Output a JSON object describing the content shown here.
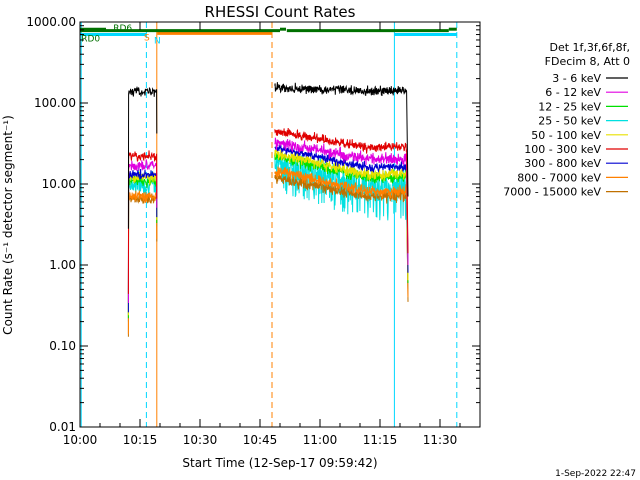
{
  "chart_data": {
    "type": "line",
    "title": "RHESSI Count Rates",
    "xlabel": "Start Time (12-Sep-17 09:59:42)",
    "ylabel": "Count Rate (s⁻¹ detector segment⁻¹)",
    "yscale": "log",
    "ylim": [
      0.01,
      1000
    ],
    "xlim_minutes": [
      0,
      100
    ],
    "xticks": [
      {
        "t": 0,
        "label": "10:00"
      },
      {
        "t": 15,
        "label": "10:15"
      },
      {
        "t": 30,
        "label": "10:30"
      },
      {
        "t": 45,
        "label": "10:45"
      },
      {
        "t": 60,
        "label": "11:00"
      },
      {
        "t": 75,
        "label": "11:15"
      },
      {
        "t": 90,
        "label": "11:30"
      }
    ],
    "yticks": [
      {
        "v": 1000,
        "label": "1000.00"
      },
      {
        "v": 100,
        "label": "100.00"
      },
      {
        "v": 10,
        "label": "10.00"
      },
      {
        "v": 1,
        "label": "1.00"
      },
      {
        "v": 0.1,
        "label": "0.10"
      },
      {
        "v": 0.01,
        "label": "0.01"
      }
    ],
    "legend_header": [
      "Det 1f,3f,6f,8f,",
      "FDecim 8, Att 0"
    ],
    "legend_position": "right",
    "segments": [
      [
        12.1,
        19.2
      ],
      [
        48.7,
        81.7
      ]
    ],
    "series": [
      {
        "name": "3 - 6 keV",
        "color": "#000000",
        "seg1": [
          140,
          140
        ],
        "seg2": [
          155,
          140
        ],
        "drop": 0.0,
        "noise": 0.04
      },
      {
        "name": "6 - 12 keV",
        "color": "#e000e0",
        "seg1": [
          17,
          17
        ],
        "seg2": [
          33,
          20
        ],
        "drop": 0.0,
        "noise": 0.05
      },
      {
        "name": "12 - 25 keV",
        "color": "#00e000",
        "seg1": [
          11,
          11
        ],
        "seg2": [
          22,
          12
        ],
        "drop": 0.0,
        "noise": 0.05
      },
      {
        "name": "25 - 50 keV",
        "color": "#00e0e0",
        "seg1": [
          10,
          10
        ],
        "seg2": [
          20,
          10
        ],
        "drop": 0.25,
        "noise": 0.12
      },
      {
        "name": "50 - 100 keV",
        "color": "#e8e000",
        "seg1": [
          12,
          12
        ],
        "seg2": [
          24,
          13
        ],
        "drop": 0.0,
        "noise": 0.05
      },
      {
        "name": "100 - 300 keV",
        "color": "#e00000",
        "seg1": [
          22,
          22
        ],
        "seg2": [
          45,
          28
        ],
        "drop": 0.0,
        "noise": 0.04
      },
      {
        "name": "300 - 800 keV",
        "color": "#0000d0",
        "seg1": [
          13,
          13
        ],
        "seg2": [
          28,
          16
        ],
        "drop": 0.0,
        "noise": 0.04
      },
      {
        "name": "800 - 7000 keV",
        "color": "#ff8000",
        "seg1": [
          7,
          7
        ],
        "seg2": [
          15,
          8
        ],
        "drop": 0.0,
        "noise": 0.05
      },
      {
        "name": "7000 - 15000 keV",
        "color": "#c07000",
        "seg1": [
          6.5,
          6.5
        ],
        "seg2": [
          12,
          7
        ],
        "drop": 0.0,
        "noise": 0.05
      }
    ],
    "vlines": [
      {
        "t": 0.3,
        "color": "#00d8ff",
        "style": "solid"
      },
      {
        "t": 16.6,
        "color": "#00d8ff",
        "style": "dashed"
      },
      {
        "t": 19.2,
        "color": "#ff8000",
        "style": "solid"
      },
      {
        "t": 48.0,
        "color": "#ff8000",
        "style": "dashed"
      },
      {
        "t": 78.6,
        "color": "#00d8ff",
        "style": "solid"
      },
      {
        "t": 94.2,
        "color": "#00d8ff",
        "style": "dashed"
      }
    ],
    "flag_bars": [
      {
        "color": "#00d8ff",
        "y": 700,
        "from": 0,
        "to": 16.6
      },
      {
        "color": "#00d8ff",
        "y": 700,
        "from": 78.6,
        "to": 94.2
      },
      {
        "color": "#ff8000",
        "y": 725,
        "from": 19.3,
        "to": 48.0
      },
      {
        "color": "#007000",
        "y": 783,
        "from": 0,
        "to": 50.0
      },
      {
        "color": "#007000",
        "y": 783,
        "from": 51.7,
        "to": 92.2
      },
      {
        "color": "#007000",
        "y": 815,
        "from": 0,
        "to": 6.5
      },
      {
        "color": "#007000",
        "y": 815,
        "from": 50.0,
        "to": 51.5
      },
      {
        "color": "#007000",
        "y": 815,
        "from": 92.2,
        "to": 94.2
      }
    ],
    "flag_labels": [
      {
        "text": "S",
        "color": "#ff8000",
        "t": 16.0,
        "y": 590
      },
      {
        "text": "N",
        "color": "#00d8ff",
        "t": 18.5,
        "y": 540
      },
      {
        "text": "RD0",
        "color": "#007000",
        "t": 0.3,
        "y": 575
      },
      {
        "text": "RD6",
        "color": "#007000",
        "t": 8.3,
        "y": 775
      }
    ]
  },
  "footer_date": "1-Sep-2022 22:47"
}
